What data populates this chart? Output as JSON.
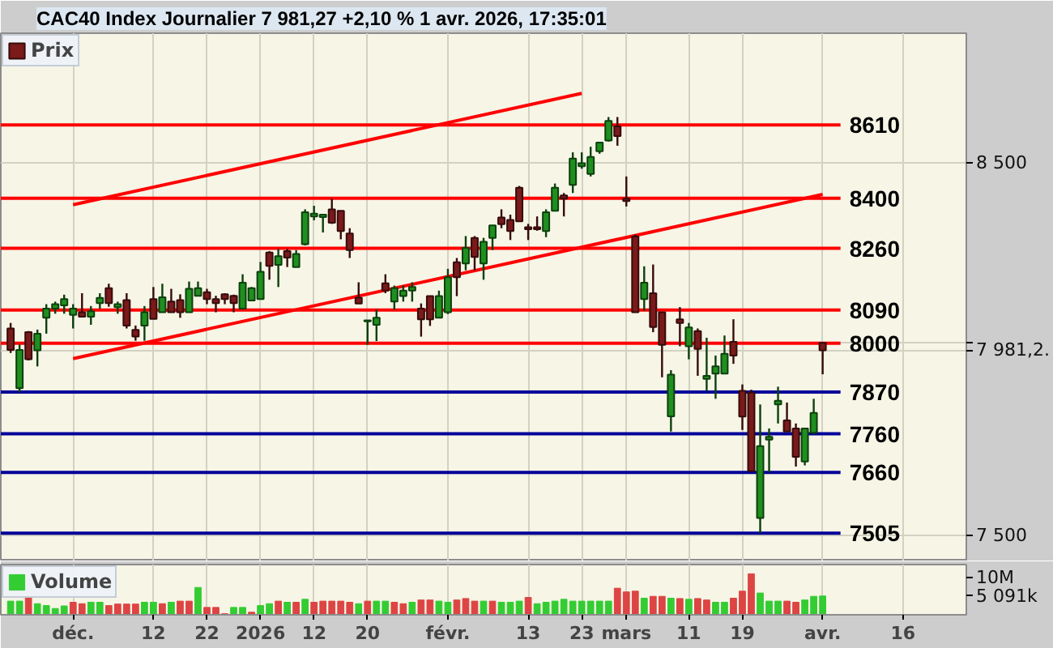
{
  "chart_data": [
    {
      "type": "candlestick",
      "title": "CAC40 Index Journalier 7 981,27 +2,10 % 1 avr. 2026, 17:35:01",
      "categories": [
        null,
        null,
        null,
        null,
        null,
        null,
        null,
        "déc.",
        null,
        null,
        null,
        null,
        null,
        null,
        null,
        null,
        "12",
        null,
        null,
        null,
        null,
        null,
        "22",
        null,
        null,
        null,
        null,
        null,
        "2026",
        null,
        null,
        null,
        null,
        null,
        "12",
        null,
        null,
        null,
        null,
        null,
        "20",
        null,
        null,
        null,
        null,
        null,
        null,
        null,
        null,
        "févr.",
        null,
        null,
        null,
        null,
        null,
        null,
        null,
        null,
        "13",
        null,
        null,
        null,
        null,
        null,
        "23",
        null,
        null,
        null,
        null,
        "mars",
        null,
        null,
        null,
        null,
        null,
        null,
        "11",
        null,
        null,
        null,
        null,
        null,
        "19",
        null,
        null,
        null,
        null,
        null,
        null,
        null,
        null,
        "avr.",
        null,
        null,
        null,
        null,
        null,
        null,
        null,
        null,
        "16",
        null,
        null,
        null,
        null,
        null
      ],
      "series": [
        {
          "type": "line",
          "x": [
            "déc.",
            "avr."
          ],
          "values": [
            7959,
            8411
          ],
          "color": "#ff0000"
        },
        {
          "type": "line",
          "x": [
            "déc.",
            "23"
          ],
          "values": [
            8382,
            8702
          ],
          "color": "#ff0000"
        },
        {
          "type": "candlestick",
          "name": "Prix",
          "ohlc": [
            [
              8040,
              8055,
              7974,
              7982
            ],
            [
              7880,
              7997,
              7869,
              7982
            ],
            [
              8030,
              8033,
              7954,
              7957
            ],
            [
              7981,
              8037,
              7938,
              8026
            ],
            [
              8069,
              8106,
              8026,
              8094
            ],
            [
              8094,
              8113,
              8080,
              8106
            ],
            [
              8103,
              8132,
              8080,
              8120
            ],
            [
              8077,
              8106,
              8040,
              8094
            ],
            [
              8084,
              8136,
              8072,
              8072
            ],
            [
              8072,
              8101,
              8050,
              8087
            ],
            [
              8109,
              8136,
              8094,
              8123
            ],
            [
              8150,
              8162,
              8099,
              8109
            ],
            [
              8098,
              8113,
              8080,
              8106
            ],
            [
              8117,
              8136,
              8040,
              8048
            ],
            [
              8036,
              8048,
              8007,
              8018
            ],
            [
              8048,
              8101,
              8007,
              8084
            ],
            [
              8120,
              8153,
              8066,
              8066
            ],
            [
              8084,
              8162,
              8084,
              8125
            ],
            [
              8113,
              8148,
              8084,
              8084
            ],
            [
              8117,
              8133,
              8069,
              8084
            ],
            [
              8084,
              8168,
              8084,
              8148
            ],
            [
              8129,
              8168,
              8129,
              8150
            ],
            [
              8139,
              8148,
              8106,
              8120
            ],
            [
              8120,
              8129,
              8084,
              8109
            ],
            [
              8133,
              8136,
              8106,
              8120
            ],
            [
              8129,
              8132,
              8084,
              8109
            ],
            [
              8094,
              8188,
              8094,
              8165
            ],
            [
              8116,
              8153,
              8116,
              8150
            ],
            [
              8120,
              8222,
              8120,
              8195
            ],
            [
              8248,
              8252,
              8173,
              8211
            ],
            [
              8214,
              8258,
              8153,
              8238
            ],
            [
              8252,
              8258,
              8208,
              8234
            ],
            [
              8208,
              8255,
              8208,
              8244
            ],
            [
              8271,
              8369,
              8268,
              8361
            ],
            [
              8349,
              8379,
              8338,
              8357
            ],
            [
              8347,
              8356,
              8304,
              8354
            ],
            [
              8369,
              8399,
              8328,
              8331
            ],
            [
              8365,
              8365,
              8285,
              8308
            ],
            [
              8301,
              8316,
              8233,
              8255
            ],
            [
              8124,
              8166,
              8108,
              8108
            ],
            [
              8059,
              8062,
              7996,
              8062
            ],
            [
              8050,
              8091,
              8006,
              8069
            ],
            [
              8163,
              8188,
              8136,
              8143
            ],
            [
              8113,
              8157,
              8091,
              8150
            ],
            [
              8128,
              8157,
              8113,
              8143
            ],
            [
              8143,
              8166,
              8113,
              8153
            ],
            [
              8094,
              8108,
              8018,
              8065
            ],
            [
              8128,
              8128,
              8047,
              8065
            ],
            [
              8069,
              8143,
              8069,
              8128
            ],
            [
              8084,
              8203,
              8079,
              8180
            ],
            [
              8221,
              8233,
              8128,
              8180
            ],
            [
              8218,
              8294,
              8199,
              8261
            ],
            [
              8289,
              8294,
              8199,
              8236
            ],
            [
              8218,
              8289,
              8173,
              8278
            ],
            [
              8289,
              8324,
              8255,
              8324
            ],
            [
              8346,
              8369,
              8316,
              8327
            ],
            [
              8339,
              8354,
              8283,
              8308
            ],
            [
              8430,
              8435,
              8335,
              8335
            ],
            [
              8319,
              8328,
              8283,
              8313
            ],
            [
              8319,
              8349,
              8309,
              8313
            ],
            [
              8308,
              8369,
              8291,
              8361
            ],
            [
              8365,
              8442,
              8365,
              8430
            ],
            [
              8408,
              8415,
              8349,
              8399
            ],
            [
              8438,
              8531,
              8415,
              8513
            ],
            [
              8491,
              8531,
              8484,
              8500
            ],
            [
              8469,
              8547,
              8462,
              8518
            ],
            [
              8534,
              8559,
              8527,
              8559
            ],
            [
              8565,
              8633,
              8562,
              8622
            ],
            [
              8606,
              8633,
              8550,
              8578
            ],
            [
              8399,
              8462,
              8377,
              8392
            ],
            [
              8293,
              8298,
              8084,
              8084
            ],
            [
              8120,
              8210,
              8088,
              8165
            ],
            [
              8136,
              8215,
              8030,
              8044
            ],
            [
              8084,
              8084,
              7909,
              7996
            ],
            [
              7806,
              7928,
              7766,
              7916
            ],
            [
              8065,
              8098,
              7992,
              8055
            ],
            [
              7992,
              8055,
              7957,
              8043
            ],
            [
              8033,
              8040,
              7913,
              7985
            ],
            [
              7905,
              8015,
              7873,
              7913
            ],
            [
              7919,
              7967,
              7852,
              7938
            ],
            [
              7919,
              8021,
              7919,
              7972
            ],
            [
              8004,
              8065,
              7945,
              7967
            ],
            [
              7873,
              7890,
              7770,
              7805
            ],
            [
              7868,
              7876,
              7663,
              7663
            ],
            [
              7543,
              7837,
              7505,
              7728
            ],
            [
              7745,
              7774,
              7660,
              7752
            ],
            [
              7837,
              7884,
              7787,
              7847
            ],
            [
              7795,
              7842,
              7766,
              7766
            ],
            [
              7774,
              7787,
              7675,
              7700
            ],
            [
              7688,
              7774,
              7678,
              7774
            ],
            [
              7763,
              7852,
              7759,
              7815
            ],
            [
              8001,
              8003,
              7917,
              7981
            ],
            null,
            null,
            null,
            null,
            null,
            null,
            null,
            null,
            null,
            null,
            null,
            null,
            null,
            null
          ],
          "colors": [
            "#7a1a1a",
            "#1f8f1f",
            "#7a1a1a",
            "#1f8f1f",
            "#1f8f1f",
            "#1f8f1f",
            "#1f8f1f",
            "#1f8f1f",
            "#7a1a1a",
            "#1f8f1f",
            "#1f8f1f",
            "#7a1a1a",
            "#1f8f1f",
            "#7a1a1a",
            "#7a1a1a",
            "#1f8f1f",
            "#7a1a1a",
            "#1f8f1f",
            "#7a1a1a",
            "#7a1a1a",
            "#1f8f1f",
            "#1f8f1f",
            "#7a1a1a",
            "#7a1a1a",
            "#7a1a1a",
            "#7a1a1a",
            "#1f8f1f",
            "#1f8f1f",
            "#1f8f1f",
            "#7a1a1a",
            "#1f8f1f",
            "#7a1a1a",
            "#1f8f1f",
            "#1f8f1f",
            "#1f8f1f",
            "#1f8f1f",
            "#7a1a1a",
            "#7a1a1a",
            "#7a1a1a",
            "#7a1a1a",
            "#1f8f1f",
            "#1f8f1f",
            "#7a1a1a",
            "#1f8f1f",
            "#1f8f1f",
            "#1f8f1f",
            "#7a1a1a",
            "#7a1a1a",
            "#1f8f1f",
            "#1f8f1f",
            "#7a1a1a",
            "#1f8f1f",
            "#7a1a1a",
            "#1f8f1f",
            "#1f8f1f",
            "#7a1a1a",
            "#7a1a1a",
            "#7a1a1a",
            "#7a1a1a",
            "#7a1a1a",
            "#1f8f1f",
            "#1f8f1f",
            "#7a1a1a",
            "#1f8f1f",
            "#1f8f1f",
            "#1f8f1f",
            "#1f8f1f",
            "#1f8f1f",
            "#7a1a1a",
            "#7a1a1a",
            "#7a1a1a",
            "#1f8f1f",
            "#7a1a1a",
            "#7a1a1a",
            "#1f8f1f",
            "#7a1a1a",
            "#1f8f1f",
            "#7a1a1a",
            "#1f8f1f",
            "#1f8f1f",
            "#1f8f1f",
            "#7a1a1a",
            "#7a1a1a",
            "#7a1a1a",
            "#1f8f1f",
            "#1f8f1f",
            "#1f8f1f",
            "#7a1a1a",
            "#7a1a1a",
            "#1f8f1f",
            "#1f8f1f",
            "#7a1a1a",
            null,
            null,
            null,
            null,
            null,
            null,
            null,
            null,
            null,
            null,
            null,
            null,
            null,
            null
          ]
        }
      ],
      "ylim": [
        7434,
        8880
      ],
      "yticks": [
        {
          "value": 8500,
          "label": "8 500"
        },
        {
          "value": 8000,
          "label": null
        },
        {
          "value": 7981.2,
          "label": "7 981,2."
        },
        {
          "value": 7500,
          "label": "7 500"
        }
      ],
      "log": true,
      "ref_lines": [
        {
          "axis": "y",
          "value": 8610,
          "label": "8610",
          "color": "#ff0000"
        },
        {
          "axis": "y",
          "value": 8400,
          "label": "8400",
          "color": "#ff0000"
        },
        {
          "axis": "y",
          "value": 8260,
          "label": "8260",
          "color": "#ff0000"
        },
        {
          "axis": "y",
          "value": 8090,
          "label": "8090",
          "color": "#ff0000"
        },
        {
          "axis": "y",
          "value": 8000,
          "label": "8000",
          "color": "#ff0000"
        },
        {
          "axis": "y",
          "value": 7870,
          "label": "7870",
          "color": "#000099"
        },
        {
          "axis": "y",
          "value": 7760,
          "label": "7760",
          "color": "#000099"
        },
        {
          "axis": "y",
          "value": 7660,
          "label": "7660",
          "color": "#000099"
        },
        {
          "axis": "y",
          "value": 7505,
          "label": "7505",
          "color": "#000099"
        }
      ],
      "grid": true,
      "legend": "top left",
      "tick_labels": "y"
    },
    {
      "type": "bar",
      "categories": [
        null,
        null,
        null,
        null,
        null,
        null,
        null,
        "déc.",
        null,
        null,
        null,
        null,
        null,
        null,
        null,
        null,
        "12",
        null,
        null,
        null,
        null,
        null,
        "22",
        null,
        null,
        null,
        null,
        null,
        "2026",
        null,
        null,
        null,
        null,
        null,
        "12",
        null,
        null,
        null,
        null,
        null,
        "20",
        null,
        null,
        null,
        null,
        null,
        null,
        null,
        null,
        "févr.",
        null,
        null,
        null,
        null,
        null,
        null,
        null,
        null,
        "13",
        null,
        null,
        null,
        null,
        null,
        "23",
        null,
        null,
        null,
        null,
        "mars",
        null,
        null,
        null,
        null,
        null,
        null,
        "11",
        null,
        null,
        null,
        null,
        null,
        "19",
        null,
        null,
        null,
        null,
        null,
        null,
        null,
        null,
        "avr.",
        null,
        null,
        null,
        null,
        null,
        null,
        null,
        null,
        "16",
        null,
        null,
        null,
        null,
        null
      ],
      "series": [
        {
          "name": "Volume",
          "values": [
            3700000,
            3700000,
            4700000,
            3000000,
            2500000,
            1700000,
            2400000,
            3400000,
            3000000,
            3400000,
            3400000,
            2500000,
            2900000,
            2900000,
            2900000,
            3400000,
            3400000,
            3000000,
            3400000,
            3700000,
            3700000,
            7400000,
            2000000,
            2000000,
            300000,
            2000000,
            2000000,
            700000,
            2500000,
            3000000,
            3700000,
            3400000,
            3400000,
            4200000,
            3400000,
            3700000,
            3700000,
            3700000,
            3400000,
            3000000,
            3700000,
            3700000,
            3700000,
            3400000,
            3000000,
            3400000,
            4000000,
            4000000,
            3700000,
            3400000,
            4000000,
            4400000,
            3700000,
            3700000,
            3700000,
            3400000,
            3400000,
            3700000,
            4700000,
            3000000,
            3400000,
            3700000,
            4200000,
            3700000,
            3700000,
            3700000,
            3700000,
            3700000,
            7200000,
            6200000,
            6400000,
            4500000,
            5000000,
            5000000,
            4500000,
            4400000,
            4200000,
            4400000,
            4000000,
            3400000,
            3400000,
            4500000,
            6400000,
            11100000,
            5900000,
            3700000,
            3700000,
            3700000,
            3400000,
            4000000,
            5000000,
            5091000,
            null,
            null,
            null,
            null,
            null,
            null,
            null,
            null,
            null,
            null,
            null,
            null,
            null,
            null
          ],
          "colors": [
            "#33cc33",
            "#33cc33",
            "#dd4444",
            "#33cc33",
            "#33cc33",
            "#33cc33",
            "#33cc33",
            "#dd4444",
            "#dd4444",
            "#33cc33",
            "#33cc33",
            "#dd4444",
            "#dd4444",
            "#dd4444",
            "#dd4444",
            "#33cc33",
            "#33cc33",
            "#dd4444",
            "#33cc33",
            "#dd4444",
            "#dd4444",
            "#33cc33",
            "#dd4444",
            "#dd4444",
            "#dd4444",
            "#33cc33",
            "#33cc33",
            "#dd4444",
            "#33cc33",
            "#33cc33",
            "#dd4444",
            "#33cc33",
            "#dd4444",
            "#33cc33",
            "#dd4444",
            "#dd4444",
            "#dd4444",
            "#dd4444",
            "#dd4444",
            "#33cc33",
            "#dd4444",
            "#33cc33",
            "#33cc33",
            "#dd4444",
            "#dd4444",
            "#33cc33",
            "#dd4444",
            "#dd4444",
            "#33cc33",
            "#33cc33",
            "#dd4444",
            "#dd4444",
            "#dd4444",
            "#33cc33",
            "#dd4444",
            "#33cc33",
            "#33cc33",
            "#33cc33",
            "#dd4444",
            "#33cc33",
            "#33cc33",
            "#33cc33",
            "#33cc33",
            "#33cc33",
            "#33cc33",
            "#33cc33",
            "#33cc33",
            "#33cc33",
            "#dd4444",
            "#dd4444",
            "#dd4444",
            "#33cc33",
            "#dd4444",
            "#dd4444",
            "#33cc33",
            "#dd4444",
            "#33cc33",
            "#dd4444",
            "#dd4444",
            "#33cc33",
            "#33cc33",
            "#dd4444",
            "#dd4444",
            "#dd4444",
            "#33cc33",
            "#33cc33",
            "#33cc33",
            "#dd4444",
            "#dd4444",
            "#33cc33",
            "#33cc33",
            "#33cc33",
            null,
            null,
            null,
            null,
            null,
            null,
            null,
            null,
            null,
            null,
            null,
            null,
            null,
            null
          ]
        }
      ],
      "ylim": [
        0,
        13600000
      ],
      "yticks": [
        {
          "value": 5091000,
          "label": "5 091k"
        },
        {
          "value": 10000000,
          "label": "10M"
        }
      ],
      "grid": "x",
      "legend": "top left"
    }
  ]
}
